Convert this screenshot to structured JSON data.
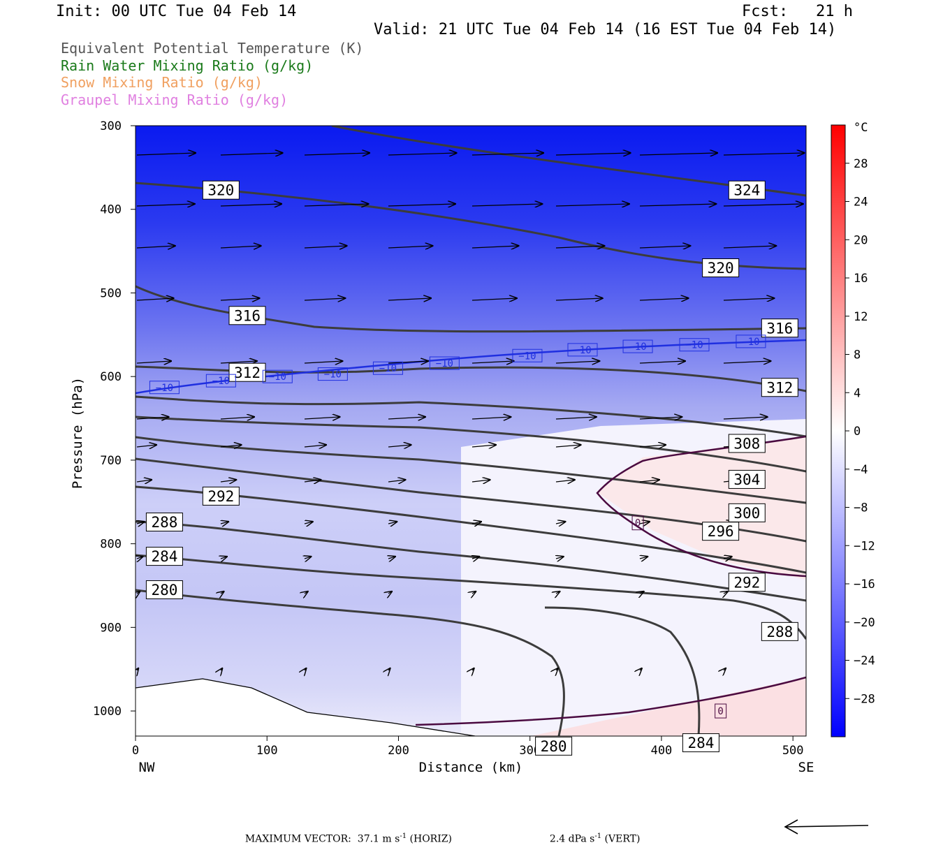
{
  "header": {
    "init": "Init: 00 UTC Tue 04 Feb 14",
    "fcst": "Fcst:   21 h",
    "valid": "Valid: 21 UTC Tue 04 Feb 14 (16 EST Tue 04 Feb 14)"
  },
  "legend": [
    {
      "label": "Equivalent Potential Temperature (K)",
      "color": "#555555"
    },
    {
      "label": "Rain Water Mixing Ratio (g/kg)",
      "color": "#1a7a1a"
    },
    {
      "label": "Snow Mixing Ratio (g/kg)",
      "color": "#f0a060"
    },
    {
      "label": "Graupel Mixing Ratio (g/kg)",
      "color": "#e080e0"
    }
  ],
  "footer": {
    "max_vector": "MAXIMUM VECTOR:  37.1 m s",
    "horiz": " (HORIZ)",
    "vert_val": "2.4 dPa s",
    "vert": " (VERT)",
    "exp": "-1"
  },
  "chart_data": {
    "type": "contour cross-section",
    "xlabel": "Distance (km)",
    "ylabel": "Pressure (hPa)",
    "x_endpoints": [
      "NW",
      "SE"
    ],
    "xlim": [
      0,
      510
    ],
    "ylim": [
      1030,
      300
    ],
    "x_ticks": [
      0,
      100,
      200,
      300,
      400,
      500
    ],
    "y_ticks": [
      300,
      400,
      500,
      600,
      700,
      800,
      900,
      1000
    ],
    "colorbar": {
      "unit": "°C",
      "ticks": [
        28,
        24,
        20,
        16,
        12,
        8,
        4,
        0,
        -4,
        -8,
        -12,
        -16,
        -20,
        -24,
        -28
      ],
      "range": [
        -32,
        32
      ]
    },
    "theta_e_labels": [
      {
        "v": "320",
        "x": 65,
        "p": 377
      },
      {
        "v": "324",
        "x": 465,
        "p": 377
      },
      {
        "v": "320",
        "x": 445,
        "p": 470
      },
      {
        "v": "316",
        "x": 85,
        "p": 527
      },
      {
        "v": "316",
        "x": 490,
        "p": 542
      },
      {
        "v": "312",
        "x": 85,
        "p": 595
      },
      {
        "v": "312",
        "x": 490,
        "p": 613
      },
      {
        "v": "308",
        "x": 465,
        "p": 680
      },
      {
        "v": "304",
        "x": 465,
        "p": 723
      },
      {
        "v": "300",
        "x": 465,
        "p": 763
      },
      {
        "v": "296",
        "x": 445,
        "p": 785
      },
      {
        "v": "292",
        "x": 65,
        "p": 743
      },
      {
        "v": "292",
        "x": 465,
        "p": 846
      },
      {
        "v": "288",
        "x": 22,
        "p": 774
      },
      {
        "v": "288",
        "x": 490,
        "p": 905
      },
      {
        "v": "284",
        "x": 22,
        "p": 815
      },
      {
        "v": "284",
        "x": 430,
        "p": 1038
      },
      {
        "v": "280",
        "x": 22,
        "p": 855
      },
      {
        "v": "280",
        "x": 318,
        "p": 1042
      }
    ],
    "temp_labels": [
      {
        "v": "-10",
        "x": 22,
        "p": 613
      },
      {
        "v": "-10",
        "x": 65,
        "p": 605
      },
      {
        "v": "-10",
        "x": 108,
        "p": 600
      },
      {
        "v": "-10",
        "x": 150,
        "p": 597
      },
      {
        "v": "-10",
        "x": 192,
        "p": 590
      },
      {
        "v": "-10",
        "x": 235,
        "p": 584
      },
      {
        "v": "-10",
        "x": 298,
        "p": 575
      },
      {
        "v": "-10",
        "x": 340,
        "p": 568
      },
      {
        "v": "-10",
        "x": 382,
        "p": 564
      },
      {
        "v": "-10",
        "x": 425,
        "p": 562
      },
      {
        "v": "-10",
        "x": 468,
        "p": 558
      },
      {
        "v": "0",
        "x": 382,
        "p": 775
      },
      {
        "v": "0",
        "x": 445,
        "p": 1000
      }
    ]
  }
}
